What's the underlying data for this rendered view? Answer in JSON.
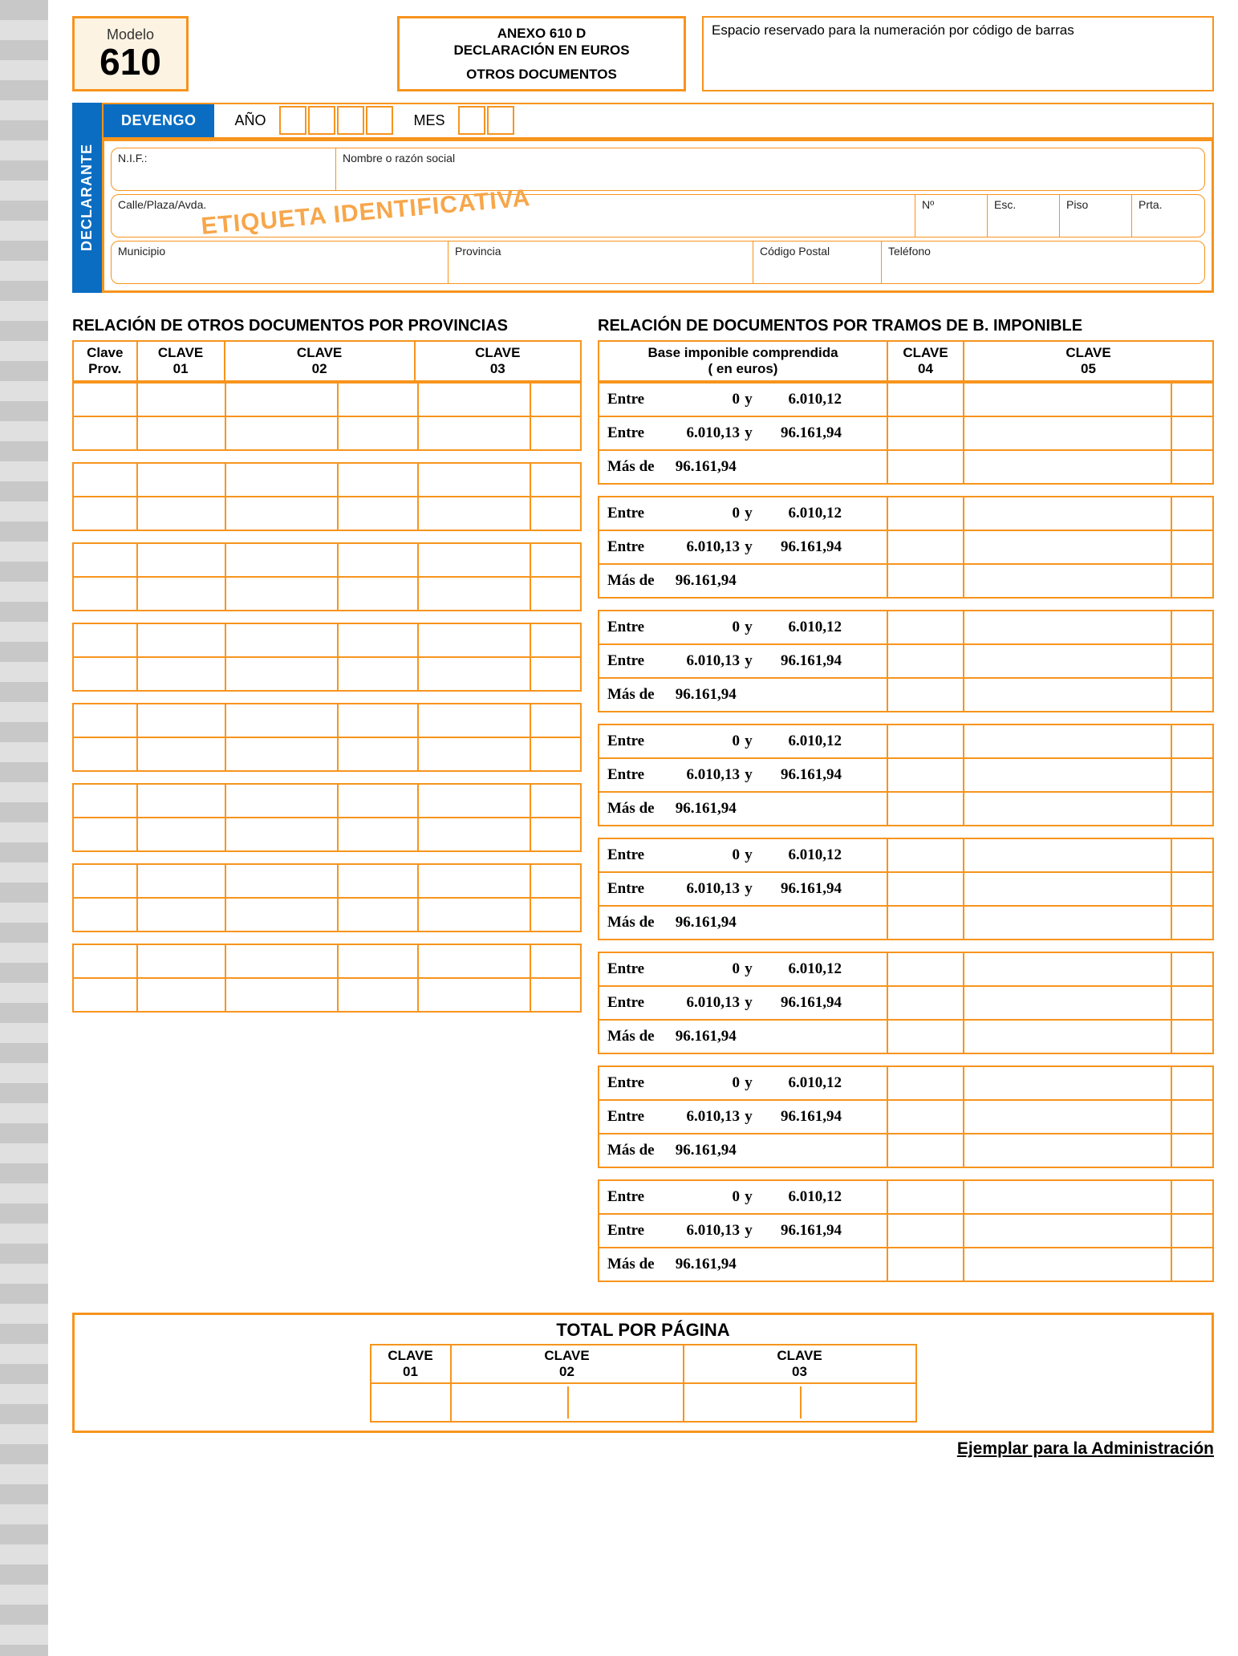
{
  "colors": {
    "accent": "#f7941d",
    "blue": "#0a6dc2"
  },
  "header": {
    "modelo_label": "Modelo",
    "modelo_number": "610",
    "titulo_l1": "ANEXO 610 D",
    "titulo_l2": "DECLARACIÓN EN EUROS",
    "titulo_l3": "OTROS DOCUMENTOS",
    "barcode_text": "Espacio reservado para la numeración por código de barras"
  },
  "devengo": {
    "label": "DEVENGO",
    "ano_label": "AÑO",
    "ano_boxes": 4,
    "mes_label": "MES",
    "mes_boxes": 2
  },
  "declarante": {
    "tab": "DECLARANTE",
    "watermark": "ETIQUETA IDENTIFICATIVA",
    "nif": "N.I.F.:",
    "nombre": "Nombre o razón social",
    "calle": "Calle/Plaza/Avda.",
    "num": "Nº",
    "esc": "Esc.",
    "piso": "Piso",
    "prta": "Prta.",
    "municipio": "Municipio",
    "provincia": "Provincia",
    "cp": "Código Postal",
    "tel": "Teléfono"
  },
  "left_section": {
    "title": "RELACIÓN DE OTROS DOCUMENTOS POR PROVINCIAS",
    "head_claveprov_l1": "Clave",
    "head_claveprov_l2": "Prov.",
    "head_c1_l1": "CLAVE",
    "head_c1_l2": "01",
    "head_c2_l1": "CLAVE",
    "head_c2_l2": "02",
    "head_c3_l1": "CLAVE",
    "head_c3_l2": "03",
    "groups": 8,
    "rows_per_group": 2
  },
  "right_section": {
    "title": "RELACIÓN DE DOCUMENTOS POR TRAMOS DE B. IMPONIBLE",
    "head_base_l1": "Base imponible comprendida",
    "head_base_l2": "( en euros)",
    "head_c4_l1": "CLAVE",
    "head_c4_l2": "04",
    "head_c5_l1": "CLAVE",
    "head_c5_l2": "05",
    "ranges": [
      {
        "kw": "Entre",
        "a": "0",
        "sep": "y",
        "b": "6.010,12"
      },
      {
        "kw": "Entre",
        "a": "6.010,13",
        "sep": "y",
        "b": "96.161,94"
      },
      {
        "kw": "Más de",
        "a": "96.161,94",
        "sep": "",
        "b": ""
      }
    ],
    "groups": 8
  },
  "total": {
    "title": "TOTAL POR PÁGINA",
    "c1_l1": "CLAVE",
    "c1_l2": "01",
    "c2_l1": "CLAVE",
    "c2_l2": "02",
    "c3_l1": "CLAVE",
    "c3_l2": "03"
  },
  "footer": "Ejemplar para la Administración"
}
